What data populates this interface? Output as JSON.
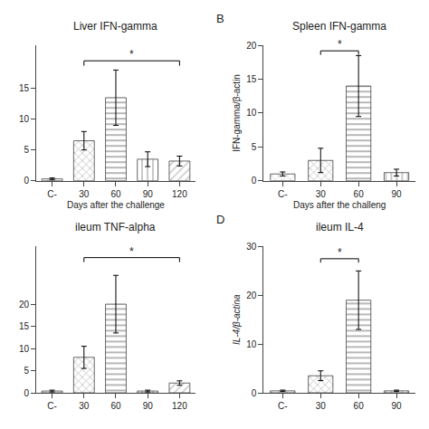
{
  "chart_data": [
    {
      "type": "bar",
      "title": "Liver IFN-gamma",
      "xlabel": "Days after the challenge",
      "categories": [
        "C-",
        "30",
        "60",
        "90",
        "120"
      ],
      "values": [
        0.3,
        6.5,
        13.5,
        3.5,
        3.2
      ],
      "errors": [
        0.15,
        1.5,
        4.5,
        1.2,
        0.8
      ],
      "colors": [
        "#d0d0d0",
        "#c0c0c0",
        "#a0a0a0",
        "#b8b8b8",
        "#c8c8c8"
      ],
      "ylim": [
        0,
        22
      ],
      "yticks": [
        0,
        5,
        10,
        15
      ],
      "grid": false,
      "annotations": [
        {
          "text": "*",
          "x": [
            "30",
            "120"
          ],
          "y": 19.5,
          "tick": 0.8
        }
      ]
    },
    {
      "type": "bar",
      "title": "Spleen IFN-gamma",
      "xlabel": "Days after the challeng",
      "ylabel": "IFN-gamma/β-actin",
      "categories": [
        "C-",
        "30",
        "60",
        "90"
      ],
      "values": [
        1.0,
        3.0,
        14.0,
        1.2
      ],
      "errors": [
        0.3,
        1.8,
        4.5,
        0.5
      ],
      "colors": [
        "#d0d0d0",
        "#c0c0c0",
        "#a0a0a0",
        "#b8b8b8"
      ],
      "ylim": [
        0,
        20
      ],
      "yticks": [
        0,
        5,
        10,
        15,
        20
      ],
      "grid": false,
      "annotations": [
        {
          "text": "B"
        },
        {
          "text": "*",
          "x": [
            "30",
            "60"
          ],
          "y": 19.2,
          "tick": 0.6
        }
      ]
    },
    {
      "type": "bar",
      "title": "ileum TNF-alpha",
      "categories": [
        "C-",
        "30",
        "60",
        "90",
        "120"
      ],
      "values": [
        0.4,
        8.0,
        20.0,
        0.4,
        2.2
      ],
      "errors": [
        0.2,
        2.5,
        6.5,
        0.2,
        0.5
      ],
      "colors": [
        "#d0d0d0",
        "#c0c0c0",
        "#a0a0a0",
        "#b8b8b8",
        "#c8c8c8"
      ],
      "ylim": [
        0,
        33
      ],
      "yticks": [
        0,
        5,
        10,
        15,
        20
      ],
      "grid": false,
      "annotations": [
        {
          "text": "*",
          "x": [
            "30",
            "120"
          ],
          "y": 30.5,
          "tick": 1.0
        }
      ]
    },
    {
      "type": "bar",
      "title": "ileum IL-4",
      "ylabel": "IL-4/β-actina",
      "categories": [
        "C-",
        "30",
        "60",
        "90"
      ],
      "values": [
        0.4,
        3.5,
        19.0,
        0.4
      ],
      "errors": [
        0.15,
        1.0,
        6.0,
        0.15
      ],
      "colors": [
        "#d0d0d0",
        "#c0c0c0",
        "#a0a0a0",
        "#b8b8b8"
      ],
      "ylim": [
        0,
        30
      ],
      "yticks": [
        0,
        10,
        20,
        30
      ],
      "grid": false,
      "annotations": [
        {
          "text": "D"
        },
        {
          "text": "*",
          "x": [
            "30",
            "60"
          ],
          "y": 27.5,
          "tick": 0.8
        }
      ]
    }
  ]
}
